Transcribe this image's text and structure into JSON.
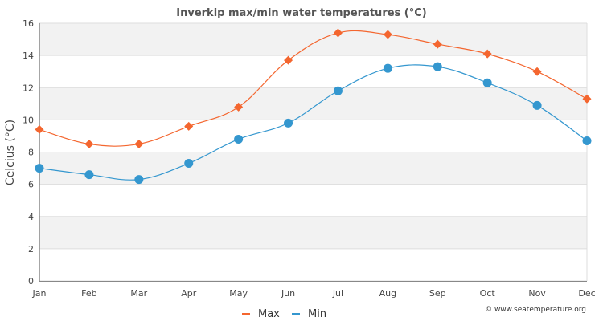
{
  "chart_data": {
    "type": "line",
    "title": "Inverkip max/min water temperatures (°C)",
    "xlabel": "",
    "ylabel": "Celcius (°C)",
    "categories": [
      "Jan",
      "Feb",
      "Mar",
      "Apr",
      "May",
      "Jun",
      "Jul",
      "Aug",
      "Sep",
      "Oct",
      "Nov",
      "Dec"
    ],
    "ylim": [
      0,
      16
    ],
    "yticks": [
      0,
      2,
      4,
      6,
      8,
      10,
      12,
      14,
      16
    ],
    "grid": true,
    "legend_position": "bottom-center",
    "series": [
      {
        "name": "Max",
        "color": "#f4662f",
        "marker": "diamond",
        "values": [
          9.4,
          8.5,
          8.5,
          9.6,
          10.8,
          13.7,
          15.4,
          15.3,
          14.7,
          14.1,
          13.0,
          11.3
        ]
      },
      {
        "name": "Min",
        "color": "#3497cf",
        "marker": "circle",
        "values": [
          7.0,
          6.6,
          6.3,
          7.3,
          8.8,
          9.8,
          11.8,
          13.2,
          13.3,
          12.3,
          10.9,
          8.7
        ]
      }
    ],
    "credit": "© www.seatemperature.org"
  },
  "colors": {
    "band": "#f2f2f2",
    "grid": "#dddddd",
    "axis": "#888888"
  }
}
